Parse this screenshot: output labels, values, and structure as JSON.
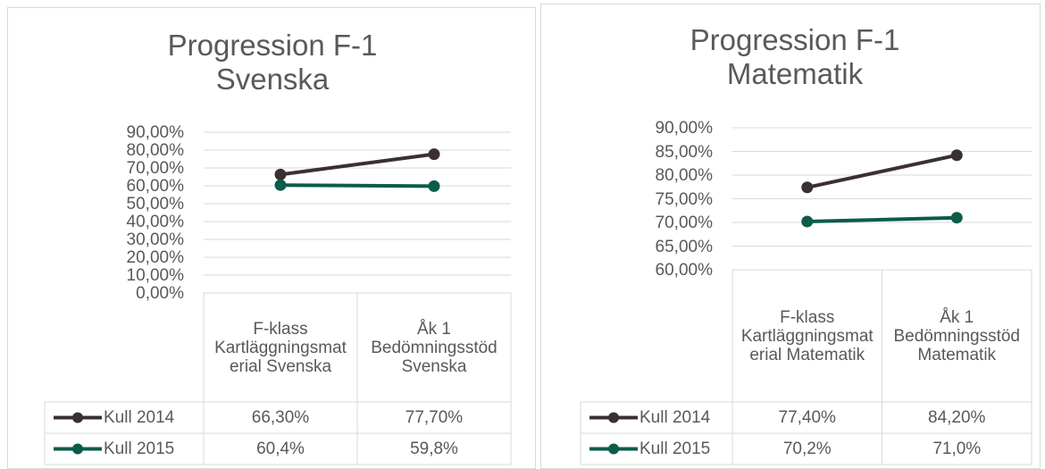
{
  "chart_data": [
    {
      "type": "line",
      "title": "Progression F-1 Svenska",
      "categories": [
        "F-klass Kartläggningsmaterial Svenska",
        "Åk 1 Bedömningsstöd Svenska"
      ],
      "series": [
        {
          "name": "Kull 2014",
          "color": "#3b3030",
          "values": [
            66.3,
            77.7
          ],
          "value_labels": [
            "66,30%",
            "77,70%"
          ]
        },
        {
          "name": "Kull 2015",
          "color": "#0b5c4a",
          "values": [
            60.4,
            59.8
          ],
          "value_labels": [
            "60,4%",
            "59,8%"
          ]
        }
      ],
      "ylim": [
        0,
        90
      ],
      "yticks": [
        {
          "value": 0,
          "label": "0,00%"
        },
        {
          "value": 10,
          "label": "10,00%"
        },
        {
          "value": 20,
          "label": "20,00%"
        },
        {
          "value": 30,
          "label": "30,00%"
        },
        {
          "value": 40,
          "label": "40,00%"
        },
        {
          "value": 50,
          "label": "50,00%"
        },
        {
          "value": 60,
          "label": "60,00%"
        },
        {
          "value": 70,
          "label": "70,00%"
        },
        {
          "value": 80,
          "label": "80,00%"
        },
        {
          "value": 90,
          "label": "90,00%"
        }
      ],
      "grid": true
    },
    {
      "type": "line",
      "title": "Progression F-1 Matematik",
      "categories": [
        "F-klass Kartläggningsmaterial Matematik",
        "Åk 1 Bedömningsstöd Matematik"
      ],
      "series": [
        {
          "name": "Kull 2014",
          "color": "#3b3030",
          "values": [
            77.4,
            84.2
          ],
          "value_labels": [
            "77,40%",
            "84,20%"
          ]
        },
        {
          "name": "Kull 2015",
          "color": "#0b5c4a",
          "values": [
            70.2,
            71.0
          ],
          "value_labels": [
            "70,2%",
            "71,0%"
          ]
        }
      ],
      "ylim": [
        60,
        90
      ],
      "yticks": [
        {
          "value": 60,
          "label": "60,00%"
        },
        {
          "value": 65,
          "label": "65,00%"
        },
        {
          "value": 70,
          "label": "70,00%"
        },
        {
          "value": 75,
          "label": "75,00%"
        },
        {
          "value": 80,
          "label": "80,00%"
        },
        {
          "value": 85,
          "label": "85,00%"
        },
        {
          "value": 90,
          "label": "90,00%"
        }
      ],
      "grid": true
    }
  ]
}
